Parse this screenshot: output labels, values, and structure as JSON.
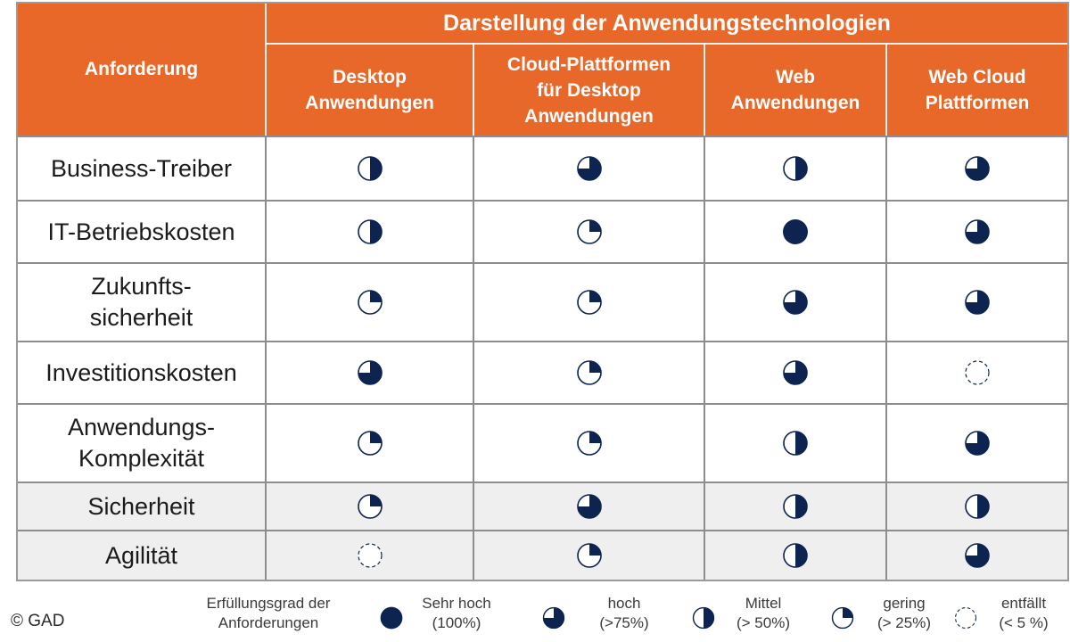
{
  "header": {
    "title": "Darstellung der Anwendungstechnologien",
    "requirement_label": "Anforderung",
    "columns": [
      {
        "line1": "Desktop",
        "line2": "Anwendungen"
      },
      {
        "line1": "Cloud-Plattformen",
        "line2": "für Desktop",
        "line3": "Anwendungen"
      },
      {
        "line1": "Web",
        "line2": "Anwendungen"
      },
      {
        "line1": "Web Cloud",
        "line2": "Plattformen"
      }
    ]
  },
  "rows": [
    {
      "line1": "Business-Treiber",
      "ratings": [
        50,
        75,
        50,
        75
      ]
    },
    {
      "line1": "IT-Betriebskosten",
      "ratings": [
        50,
        25,
        100,
        75
      ]
    },
    {
      "line1": "Zukunfts-",
      "line2": "sicherheit",
      "ratings": [
        25,
        25,
        75,
        75
      ]
    },
    {
      "line1": "Investitionskosten",
      "ratings": [
        75,
        25,
        75,
        5
      ]
    },
    {
      "line1": "Anwendungs-",
      "line2": "Komplexität",
      "ratings": [
        25,
        25,
        50,
        75
      ]
    },
    {
      "line1": "Sicherheit",
      "ratings": [
        25,
        75,
        50,
        50
      ]
    },
    {
      "line1": "Agilität",
      "ratings": [
        5,
        25,
        50,
        75
      ]
    }
  ],
  "legend": {
    "title_line1": "Erfüllungsgrad der",
    "title_line2": "Anforderungen",
    "items": [
      {
        "line1": "Sehr hoch",
        "line2": "(100%)",
        "level": 100
      },
      {
        "line1": "hoch",
        "line2": "(>75%)",
        "level": 75
      },
      {
        "line1": "Mittel",
        "line2": "(> 50%)",
        "level": 50
      },
      {
        "line1": "gering",
        "line2": "(> 25%)",
        "level": 25
      },
      {
        "line1": "entfällt",
        "line2": "(< 5 %)",
        "level": 5
      }
    ]
  },
  "copyright": "© GAD",
  "colors": {
    "header_bg": "#e8682a",
    "symbol": "#0d2350",
    "shaded_row": "#efefef"
  }
}
